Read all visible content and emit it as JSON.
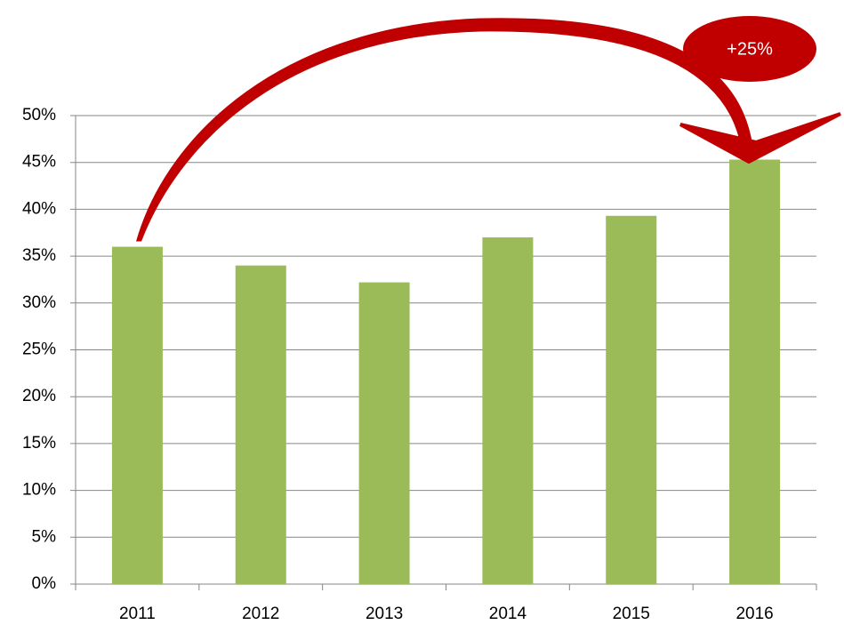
{
  "chart_data": {
    "type": "bar",
    "categories": [
      "2011",
      "2012",
      "2013",
      "2014",
      "2015",
      "2016"
    ],
    "values": [
      36,
      34,
      32.2,
      37,
      39.3,
      45.3
    ],
    "color": "#9bbb59",
    "ylim": [
      0,
      50
    ],
    "yticks": [
      {
        "value": 0,
        "label": "0%"
      },
      {
        "value": 5,
        "label": "5%"
      },
      {
        "value": 10,
        "label": "10%"
      },
      {
        "value": 15,
        "label": "15%"
      },
      {
        "value": 20,
        "label": "20%"
      },
      {
        "value": 25,
        "label": "25%"
      },
      {
        "value": 30,
        "label": "30%"
      },
      {
        "value": 35,
        "label": "35%"
      },
      {
        "value": 40,
        "label": "40%"
      },
      {
        "value": 45,
        "label": "45%"
      },
      {
        "value": 50,
        "label": "50%"
      }
    ],
    "grid": true,
    "annotation": "+25%"
  }
}
